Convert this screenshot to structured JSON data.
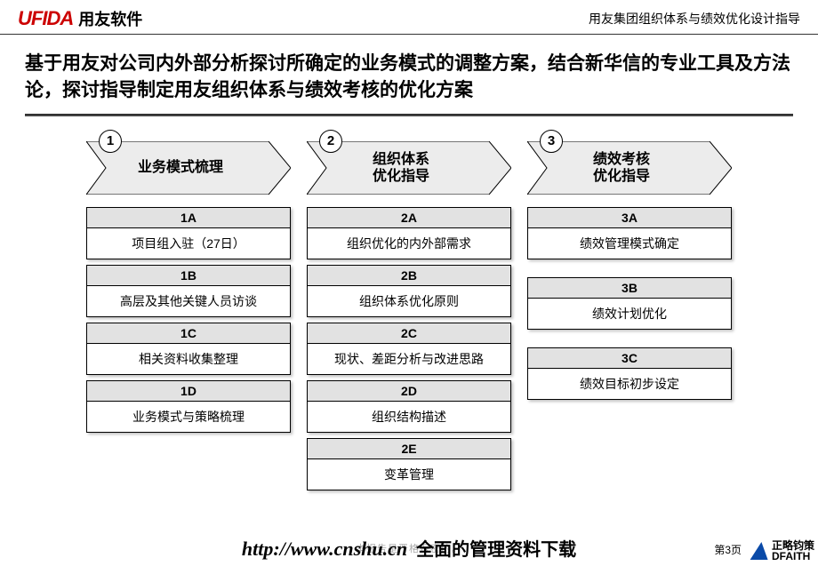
{
  "header": {
    "logo_en": "UFIDA",
    "logo_cn": "用友软件",
    "right_text": "用友集团组织体系与绩效优化设计指导"
  },
  "title": "基于用友对公司内外部分析探讨所确定的业务模式的调整方案，结合新华信的专业工具及方法论，探讨指导制定用友组织体系与绩效考核的优化方案",
  "chevron": {
    "fill": "#ececec",
    "stroke": "#000000"
  },
  "columns": [
    {
      "num": "1",
      "title": "业务模式梳理",
      "items": [
        {
          "code": "1A",
          "text": "项目组入驻（27日）"
        },
        {
          "code": "1B",
          "text": "高层及其他关键人员访谈"
        },
        {
          "code": "1C",
          "text": "相关资料收集整理"
        },
        {
          "code": "1D",
          "text": "业务模式与策略梳理"
        }
      ]
    },
    {
      "num": "2",
      "title": "组织体系\n优化指导",
      "items": [
        {
          "code": "2A",
          "text": "组织优化的内外部需求"
        },
        {
          "code": "2B",
          "text": "组织体系优化原则"
        },
        {
          "code": "2C",
          "text": "现状、差距分析与改进思路"
        },
        {
          "code": "2D",
          "text": "组织结构描述"
        },
        {
          "code": "2E",
          "text": "变革管理"
        }
      ]
    },
    {
      "num": "3",
      "title": "绩效考核\n优化指导",
      "items": [
        {
          "code": "3A",
          "text": "绩效管理模式确定"
        },
        {
          "code": "3B",
          "text": "绩效计划优化"
        },
        {
          "code": "3C",
          "text": "绩效目标初步设定"
        }
      ]
    }
  ],
  "footer": {
    "url": "http://www.cnshu.cn",
    "tagline": "全面的管理资料下载",
    "page": "第3页",
    "watermark": "本报告是严格保密的。",
    "right_logo_top": "正略钧策",
    "right_logo_bottom": "DFAITH"
  }
}
